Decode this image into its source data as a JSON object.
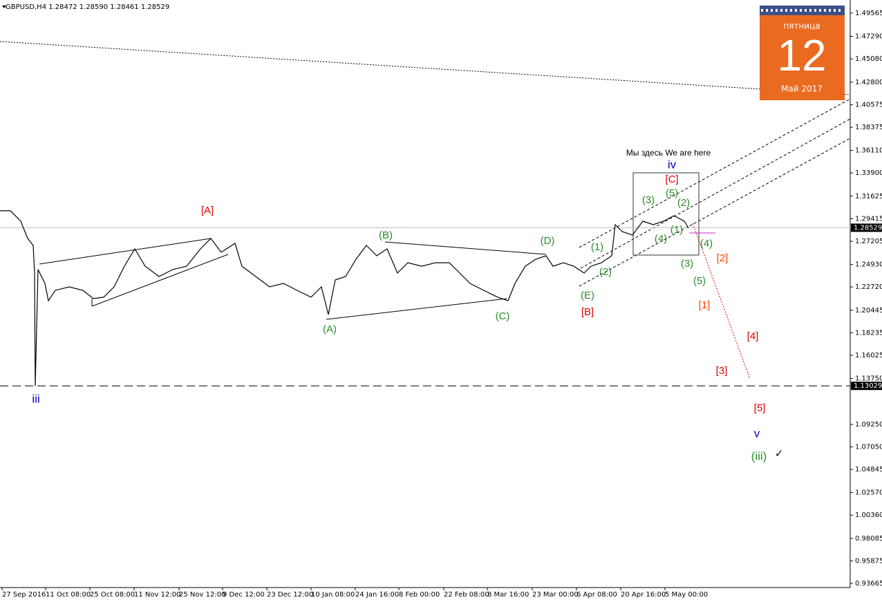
{
  "chart_data": {
    "type": "line",
    "title": "GBPUSD,H4  1.28472 1.28590 1.28461 1.28529",
    "series": [
      {
        "color": "#000000",
        "x": [
          0,
          15,
          30,
          40,
          48,
          50,
          51,
          55,
          65,
          70,
          80,
          100,
          120,
          135,
          150,
          165,
          180,
          195,
          210,
          230,
          250,
          270,
          290,
          305,
          320,
          340,
          350,
          370,
          390,
          410,
          430,
          450,
          465,
          475,
          485,
          500,
          515,
          530,
          545,
          560,
          575,
          590,
          610,
          630,
          650,
          665,
          680,
          700,
          720,
          735,
          745,
          760,
          775,
          790,
          800,
          815,
          830,
          845,
          855,
          870,
          885,
          890,
          900,
          915,
          930,
          945,
          960,
          975,
          990,
          996
        ],
        "values": [
          1.3019,
          1.3019,
          1.2917,
          1.2748,
          1.268,
          1.2409,
          1.1303,
          1.2443,
          1.2307,
          1.2138,
          1.2239,
          1.2273,
          1.2239,
          1.2158,
          1.2172,
          1.2273,
          1.2476,
          1.2646,
          1.2476,
          1.2375,
          1.2443,
          1.2476,
          1.2646,
          1.2748,
          1.2612,
          1.27,
          1.2476,
          1.2375,
          1.2273,
          1.2307,
          1.2239,
          1.2172,
          1.2273,
          1.2002,
          1.2341,
          1.2375,
          1.2544,
          1.268,
          1.2578,
          1.2646,
          1.2409,
          1.251,
          1.2476,
          1.251,
          1.251,
          1.2409,
          1.2307,
          1.2239,
          1.2172,
          1.2138,
          1.2307,
          1.2476,
          1.2544,
          1.2578,
          1.2476,
          1.251,
          1.2476,
          1.2409,
          1.2476,
          1.251,
          1.2578,
          1.2883,
          1.2815,
          1.2781,
          1.2917,
          1.2883,
          1.2917,
          1.2971,
          1.2917,
          1.2849
        ]
      }
    ],
    "xlim": [
      0,
      1230
    ],
    "xticks": [
      {
        "value": 3,
        "label": "27 Sep 2016"
      },
      {
        "value": 66,
        "label": "11 Oct 08:00"
      },
      {
        "value": 130,
        "label": "25 Oct 08:00"
      },
      {
        "value": 194,
        "label": "11 Nov 12:00"
      },
      {
        "value": 259,
        "label": "25 Nov 12:00"
      },
      {
        "value": 322,
        "label": "9 Dec 12:00"
      },
      {
        "value": 386,
        "label": "23 Dec 12:00"
      },
      {
        "value": 450,
        "label": "10 Jan 08:00"
      },
      {
        "value": 514,
        "label": "24 Jan 16:00"
      },
      {
        "value": 577,
        "label": "8 Feb 00:00"
      },
      {
        "value": 642,
        "label": "22 Feb 08:00"
      },
      {
        "value": 705,
        "label": "8 Mar 16:00"
      },
      {
        "value": 770,
        "label": "23 Mar 00:00"
      },
      {
        "value": 834,
        "label": "6 Apr 08:00"
      },
      {
        "value": 898,
        "label": "20 Apr 16:00"
      },
      {
        "value": 962,
        "label": "5 May 00:00"
      }
    ],
    "ylim": [
      0.9326,
      1.5085
    ],
    "yticks": [
      1.49565,
      {
        "value": 1.4729,
        "label": "1.47290"
      },
      {
        "value": 1.4508,
        "label": "1.45080"
      },
      {
        "value": 1.428,
        "label": "1.42800"
      },
      1.40575,
      1.38375,
      {
        "value": 1.3611,
        "label": "1.36110"
      },
      {
        "value": 1.339,
        "label": "1.33900"
      },
      1.31625,
      1.29415,
      1.27205,
      {
        "value": 1.2493,
        "label": "1.24930"
      },
      {
        "value": 1.2272,
        "label": "1.22720"
      },
      1.20445,
      1.18235,
      1.16025,
      {
        "value": 1.1375,
        "label": "1.13750"
      },
      {
        "value": 1.0925,
        "label": "1.09250"
      },
      {
        "value": 1.0705,
        "label": "1.07050"
      },
      1.04845,
      {
        "value": 1.0257,
        "label": "1.02570"
      },
      {
        "value": 1.0036,
        "label": "1.00360"
      },
      0.98085,
      0.95875,
      0.93665
    ],
    "hlines": [
      {
        "value": 1.28529,
        "style": "solid",
        "color": "#c0c0c0"
      },
      {
        "value": 1.13029,
        "style": "dashed",
        "color": "#000000"
      }
    ],
    "annotations": [
      {
        "text": "[A]",
        "color": "#e00000"
      },
      {
        "text": "(A)",
        "color": "#2a8c2a"
      },
      {
        "text": "(B)",
        "color": "#2a8c2a"
      },
      {
        "text": "(C)",
        "color": "#2a8c2a"
      },
      {
        "text": "(D)",
        "color": "#2a8c2a"
      },
      {
        "text": "(E)",
        "color": "#2a8c2a"
      },
      {
        "text": "[B]",
        "color": "#e00000"
      },
      {
        "text": "(1)",
        "color": "#2a8c2a"
      },
      {
        "text": "(2)",
        "color": "#2a8c2a"
      },
      {
        "text": "(3)",
        "color": "#2a8c2a"
      },
      {
        "text": "(5)",
        "color": "#2a8c2a"
      },
      {
        "text": "(2)",
        "color": "#2a8c2a"
      },
      {
        "text": "(4)",
        "color": "#2a8c2a"
      },
      {
        "text": "(1)",
        "color": "#2a8c2a"
      },
      {
        "text": "(4)",
        "color": "#2a8c2a"
      },
      {
        "text": "(3)",
        "color": "#2a8c2a"
      },
      {
        "text": "(5)",
        "color": "#2a8c2a"
      },
      {
        "text": "[C]",
        "color": "#e00000"
      },
      {
        "text": "iv",
        "color": "#0000cc"
      },
      {
        "text": "[2]",
        "color": "#ff4500"
      },
      {
        "text": "[1]",
        "color": "#ff4500"
      },
      {
        "text": "[4]",
        "color": "#e00000"
      },
      {
        "text": "[3]",
        "color": "#e00000"
      },
      {
        "text": "[5]",
        "color": "#e00000"
      },
      {
        "text": "v",
        "color": "#0000cc"
      },
      {
        "text": "(iii)",
        "color": "#2a8c2a"
      },
      {
        "text": "iii",
        "color": "#0000cc"
      },
      {
        "text": "Мы здесь We are here",
        "color": "#000000"
      },
      {
        "text": "✓",
        "color": "#000000"
      }
    ],
    "calendar": {
      "weekday": "пятница",
      "day": "12",
      "month": "Май 2017"
    }
  }
}
